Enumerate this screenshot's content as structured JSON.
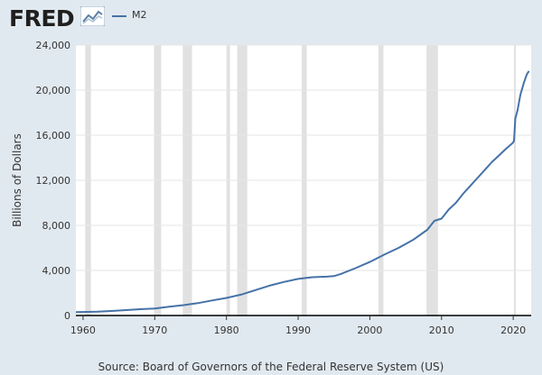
{
  "header": {
    "logo_text": "FRED",
    "legend_label": "M2"
  },
  "colors": {
    "frame": "#e1e9f0",
    "series": "#4572a7",
    "recession": "#e1e1e1"
  },
  "icons": {
    "logo_graph": "line-chart-icon"
  },
  "footer": {
    "source": "Source: Board of Governors of the Federal Reserve System (US)"
  },
  "chart_data": {
    "type": "line",
    "ylabel": "Billions of Dollars",
    "xlim": [
      1959,
      2022.5
    ],
    "ylim": [
      0,
      24000
    ],
    "yticks": [
      0,
      4000,
      8000,
      12000,
      16000,
      20000,
      24000
    ],
    "ytick_labels": [
      "0",
      "4,000",
      "8,000",
      "12,000",
      "16,000",
      "20,000",
      "24,000"
    ],
    "xticks": [
      1960,
      1970,
      1980,
      1990,
      2000,
      2010,
      2020
    ],
    "xtick_labels": [
      "1960",
      "1970",
      "1980",
      "1990",
      "2000",
      "2010",
      "2020"
    ],
    "grid": true,
    "recessions": [
      [
        1960.3,
        1961.1
      ],
      [
        1969.9,
        1970.9
      ],
      [
        1973.9,
        1975.2
      ],
      [
        1980.0,
        1980.5
      ],
      [
        1981.5,
        1982.9
      ],
      [
        1990.5,
        1991.2
      ],
      [
        2001.2,
        2001.9
      ],
      [
        2007.9,
        2009.5
      ],
      [
        2020.1,
        2020.3
      ]
    ],
    "series": [
      {
        "name": "M2",
        "color": "#4572a7",
        "x": [
          1959,
          1962,
          1965,
          1968,
          1970,
          1972,
          1974,
          1976,
          1978,
          1980,
          1982,
          1984,
          1986,
          1988,
          1990,
          1992,
          1994,
          1995,
          1996,
          1998,
          2000,
          2002,
          2004,
          2006,
          2008,
          2009,
          2010,
          2011,
          2012,
          2013,
          2014,
          2015,
          2016,
          2017,
          2018,
          2019,
          2019.9,
          2020.1,
          2020.3,
          2020.6,
          2021,
          2021.5,
          2021.9,
          2022.2
        ],
        "y": [
          300,
          340,
          440,
          560,
          620,
          780,
          920,
          1100,
          1340,
          1560,
          1850,
          2250,
          2650,
          2980,
          3250,
          3400,
          3450,
          3500,
          3700,
          4200,
          4750,
          5400,
          6000,
          6700,
          7600,
          8400,
          8600,
          9400,
          10000,
          10800,
          11500,
          12200,
          12900,
          13600,
          14200,
          14800,
          15300,
          15500,
          17500,
          18200,
          19600,
          20700,
          21400,
          21700
        ]
      }
    ]
  }
}
